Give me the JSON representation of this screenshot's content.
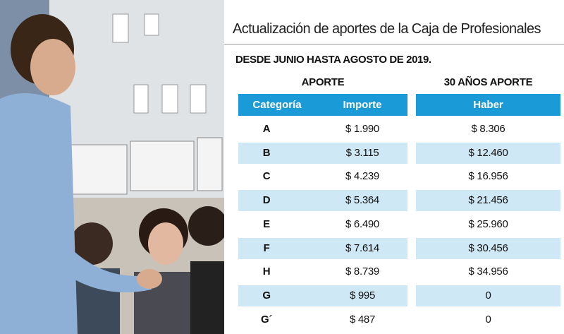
{
  "header": {
    "title": "Actualización de aportes de la Caja de Profesionales",
    "subtitle": "DESDE JUNIO HASTA AGOSTO DE 2019."
  },
  "table": {
    "groups": [
      "APORTE",
      "30 AÑOS APORTE"
    ],
    "columns": [
      "Categoría",
      "Importe",
      "Haber"
    ],
    "rows": [
      [
        "A",
        "$ 1.990",
        "$ 8.306"
      ],
      [
        "B",
        "$ 3.115",
        "$ 12.460"
      ],
      [
        "C",
        "$ 4.239",
        "$ 16.956"
      ],
      [
        "D",
        "$ 5.364",
        "$ 21.456"
      ],
      [
        "E",
        "$ 6.490",
        "$ 25.960"
      ],
      [
        "F",
        "$ 7.614",
        "$ 30.456"
      ],
      [
        "H",
        "$ 8.739",
        "$ 34.956"
      ],
      [
        "G",
        "$ 995",
        "0"
      ],
      [
        "G´",
        "$ 487",
        "0"
      ]
    ]
  }
}
